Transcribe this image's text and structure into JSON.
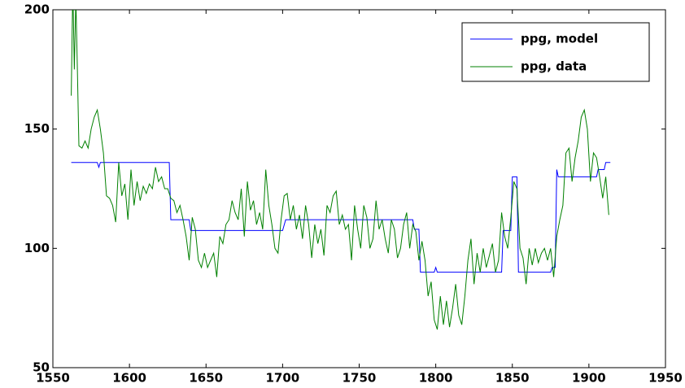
{
  "chart_data": {
    "type": "line",
    "xlim": [
      1550,
      1950
    ],
    "xticks": [
      1550,
      1600,
      1650,
      1700,
      1750,
      1800,
      1850,
      1900,
      1950
    ],
    "ylim": [
      50,
      200
    ],
    "yticks": [
      50,
      100,
      150,
      200
    ],
    "legend": "upper right",
    "series": [
      {
        "name": "ppg, model",
        "color": "#0000ff",
        "x": [
          1562,
          1579,
          1580,
          1581,
          1626,
          1627,
          1639,
          1640,
          1700,
          1702,
          1785,
          1786,
          1789,
          1790,
          1799,
          1800,
          1801,
          1843,
          1844,
          1849,
          1850,
          1853,
          1854,
          1875,
          1876,
          1878,
          1879,
          1880,
          1905,
          1906,
          1910,
          1911,
          1914
        ],
        "values": [
          136,
          136,
          134,
          136,
          136,
          112,
          112,
          107.5,
          107.5,
          112,
          112,
          108,
          108,
          90,
          90,
          92,
          90,
          90,
          107.5,
          107.5,
          130,
          130,
          90,
          90,
          92,
          92,
          133,
          130,
          130,
          133,
          133,
          136,
          136
        ]
      },
      {
        "name": "ppg, data",
        "color": "#008000",
        "x": [
          1562,
          1563,
          1564,
          1565,
          1566,
          1567,
          1569,
          1571,
          1573,
          1575,
          1577,
          1579,
          1581,
          1583,
          1585,
          1587,
          1589,
          1591,
          1593,
          1595,
          1597,
          1599,
          1601,
          1603,
          1605,
          1607,
          1609,
          1611,
          1613,
          1615,
          1617,
          1619,
          1621,
          1623,
          1625,
          1627,
          1629,
          1631,
          1633,
          1635,
          1637,
          1639,
          1641,
          1643,
          1645,
          1647,
          1649,
          1651,
          1653,
          1655,
          1657,
          1659,
          1661,
          1663,
          1665,
          1667,
          1669,
          1671,
          1673,
          1675,
          1677,
          1679,
          1681,
          1683,
          1685,
          1687,
          1689,
          1691,
          1693,
          1695,
          1697,
          1699,
          1701,
          1703,
          1705,
          1707,
          1709,
          1711,
          1713,
          1715,
          1717,
          1719,
          1721,
          1723,
          1725,
          1727,
          1729,
          1731,
          1733,
          1735,
          1737,
          1739,
          1741,
          1743,
          1745,
          1747,
          1749,
          1751,
          1753,
          1755,
          1757,
          1759,
          1761,
          1763,
          1765,
          1767,
          1769,
          1771,
          1773,
          1775,
          1777,
          1779,
          1781,
          1783,
          1785,
          1787,
          1789,
          1791,
          1793,
          1795,
          1797,
          1799,
          1801,
          1803,
          1805,
          1807,
          1809,
          1811,
          1813,
          1815,
          1817,
          1819,
          1821,
          1823,
          1825,
          1827,
          1829,
          1831,
          1833,
          1835,
          1837,
          1839,
          1841,
          1843,
          1845,
          1847,
          1849,
          1851,
          1853,
          1855,
          1857,
          1859,
          1861,
          1863,
          1865,
          1867,
          1869,
          1871,
          1873,
          1875,
          1877,
          1879,
          1881,
          1883,
          1885,
          1887,
          1889,
          1891,
          1893,
          1895,
          1897,
          1899,
          1901,
          1903,
          1905,
          1907,
          1909,
          1911,
          1913
        ],
        "values": [
          164,
          210,
          175,
          205,
          175,
          143,
          142,
          145,
          142,
          150,
          155,
          158,
          150,
          140,
          122,
          121,
          118,
          111,
          136,
          122,
          127,
          112,
          133,
          118,
          128,
          120,
          126,
          123,
          127,
          125,
          134,
          128,
          130,
          125,
          125,
          121,
          120,
          115,
          118,
          112,
          105,
          95,
          113,
          108,
          95,
          92,
          98,
          92,
          95,
          98,
          88,
          105,
          102,
          110,
          112,
          120,
          115,
          112,
          125,
          105,
          128,
          116,
          120,
          110,
          115,
          108,
          133,
          118,
          110,
          100,
          98,
          112,
          122,
          123,
          112,
          118,
          108,
          114,
          104,
          118,
          110,
          96,
          110,
          102,
          108,
          97,
          118,
          115,
          122,
          124,
          110,
          114,
          108,
          110,
          95,
          118,
          108,
          100,
          118,
          113,
          100,
          104,
          120,
          108,
          112,
          104,
          98,
          112,
          108,
          96,
          100,
          110,
          115,
          100,
          110,
          107,
          95,
          103,
          95,
          80,
          86,
          70,
          66,
          80,
          68,
          78,
          67,
          75,
          85,
          72,
          68,
          80,
          95,
          104,
          85,
          98,
          90,
          100,
          92,
          97,
          102,
          90,
          95,
          115,
          105,
          100,
          113,
          128,
          125,
          100,
          96,
          85,
          100,
          93,
          100,
          94,
          98,
          100,
          95,
          100,
          88,
          105,
          112,
          118,
          140,
          142,
          128,
          138,
          145,
          155,
          158,
          150,
          128,
          140,
          138,
          130,
          121,
          130,
          114
        ]
      }
    ]
  }
}
